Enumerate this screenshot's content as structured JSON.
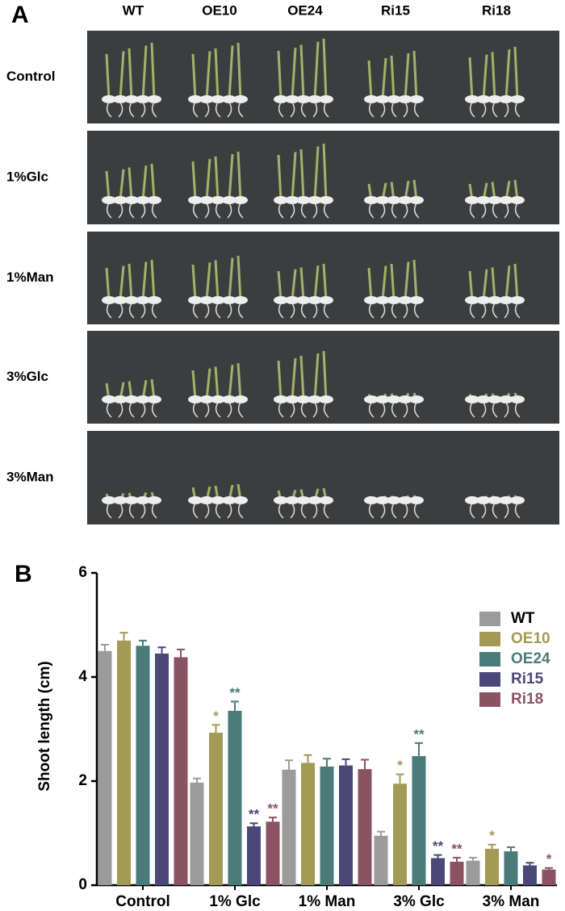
{
  "panel_a": {
    "label": "A",
    "columns": [
      "WT",
      "OE10",
      "OE24",
      "Ri15",
      "Ri18"
    ],
    "rows": [
      "Control",
      "1%Glc",
      "1%Man",
      "3%Glc",
      "3%Man"
    ]
  },
  "chart_data": {
    "type": "bar",
    "panel_label": "B",
    "ylabel": "Shoot length (cm)",
    "categories": [
      "Control",
      "1% Glc",
      "1% Man",
      "3% Glc",
      "3% Man"
    ],
    "ylim": [
      0,
      6
    ],
    "yticks": [
      0,
      2,
      4,
      6
    ],
    "grid": false,
    "legend": "upper right",
    "series": [
      {
        "name": "WT",
        "color": "#9b9b9b",
        "values": [
          4.5,
          1.97,
          2.22,
          0.95,
          0.47
        ],
        "errors": [
          0.12,
          0.08,
          0.18,
          0.08,
          0.06
        ],
        "annotations": [
          null,
          null,
          null,
          null,
          null
        ]
      },
      {
        "name": "OE10",
        "color": "#a39a55",
        "values": [
          4.7,
          2.93,
          2.35,
          1.95,
          0.7
        ],
        "errors": [
          0.15,
          0.15,
          0.15,
          0.18,
          0.08
        ],
        "annotations": [
          null,
          "*",
          null,
          "*",
          "*"
        ]
      },
      {
        "name": "OE24",
        "color": "#4b7b78",
        "values": [
          4.6,
          3.35,
          2.28,
          2.48,
          0.65
        ],
        "errors": [
          0.1,
          0.18,
          0.15,
          0.25,
          0.08
        ],
        "annotations": [
          null,
          "**",
          null,
          "**",
          null
        ]
      },
      {
        "name": "Ri15",
        "color": "#4b4878",
        "values": [
          4.45,
          1.13,
          2.3,
          0.52,
          0.38
        ],
        "errors": [
          0.12,
          0.06,
          0.12,
          0.06,
          0.05
        ],
        "annotations": [
          null,
          "**",
          null,
          "**",
          null
        ]
      },
      {
        "name": "Ri18",
        "color": "#8b5263",
        "values": [
          4.38,
          1.22,
          2.23,
          0.45,
          0.3
        ],
        "errors": [
          0.15,
          0.08,
          0.18,
          0.08,
          0.03
        ],
        "annotations": [
          null,
          "**",
          null,
          "**",
          "*"
        ]
      }
    ]
  }
}
